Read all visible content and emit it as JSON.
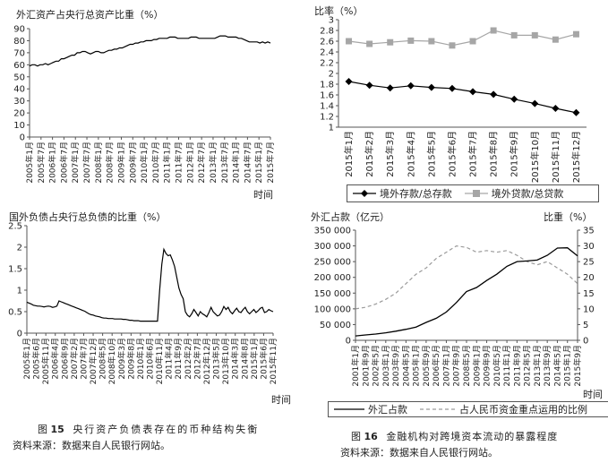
{
  "figure15": {
    "caption_prefix": "图",
    "caption_num": "15",
    "caption_text": "央行资产负债表存在的币种结构失衡",
    "source": "资料来源：数据来自人民银行网站。"
  },
  "figure16": {
    "caption_prefix": "图",
    "caption_num": "16",
    "caption_text": "金融机构对跨境资本流动的暴露程度",
    "source": "资料来源：数据来自人民银行网站。"
  },
  "colors": {
    "line": "#000000",
    "grey": "#a6a6a6",
    "dashed": "#9a9a9a",
    "axis": "#555555"
  },
  "chart_data": [
    {
      "id": "fx-assets-share",
      "type": "line",
      "ylabel": "外汇资产占央行总资产比重（%）",
      "xlabel": "时间",
      "ylim": [
        0,
        90
      ],
      "yticks": [
        0,
        10,
        20,
        30,
        40,
        50,
        60,
        70,
        80,
        90
      ],
      "x_tick_labels": [
        "2005年1月",
        "2005年7月",
        "2006年1月",
        "2006年7月",
        "2007年1月",
        "2007年7月",
        "2008年1月",
        "2008年7月",
        "2009年1月",
        "2009年7月",
        "2010年1月",
        "2010年7月",
        "2011年1月",
        "2011年7月",
        "2012年1月",
        "2012年7月",
        "2013年1月",
        "2013年7月",
        "2014年1月",
        "2014年7月",
        "2015年1月",
        "2015年7月"
      ],
      "series": [
        {
          "values": [
            59,
            60,
            60,
            59,
            60,
            60,
            61,
            60,
            61,
            62,
            63,
            63,
            65,
            65,
            66,
            67,
            68,
            68,
            70,
            70,
            71,
            71,
            70,
            69,
            70,
            71,
            71,
            70,
            70,
            71,
            72,
            72,
            73,
            73,
            74,
            74,
            75,
            76,
            77,
            77,
            78,
            78,
            79,
            79,
            80,
            80,
            80,
            81,
            81,
            82,
            82,
            82,
            82,
            83,
            83,
            83,
            82,
            82,
            82,
            82,
            82,
            83,
            83,
            83,
            82,
            82,
            82,
            82,
            82,
            82,
            82,
            83,
            84,
            84,
            84,
            83,
            83,
            83,
            83,
            82,
            82,
            81,
            80,
            79,
            79,
            79,
            79,
            78,
            79,
            78,
            79,
            78
          ]
        }
      ],
      "grid": false
    },
    {
      "id": "foreign-liabilities-share",
      "type": "line",
      "ylabel": "国外负债占央行总负债的比重（%）",
      "xlabel": "时间",
      "ylim": [
        0,
        2.5
      ],
      "yticks": [
        0,
        0.5,
        1,
        1.5,
        2,
        2.5
      ],
      "x_tick_labels": [
        "2005年1月",
        "2005年6月",
        "2005年11月",
        "2006年4月",
        "2006年9月",
        "2007年2月",
        "2007年7月",
        "2007年12月",
        "2008年5月",
        "2008年10月",
        "2009年3月",
        "2009年8月",
        "2010年1月",
        "2010年6月",
        "2010年11月",
        "2011年4月",
        "2011年9月",
        "2012年2月",
        "2012年7月",
        "2012年12月",
        "2013年5月",
        "2013年10月",
        "2014年3月",
        "2014年8月",
        "2015年1月",
        "2015年6月",
        "2015年11月"
      ],
      "series": [
        {
          "values": [
            0.72,
            0.7,
            0.68,
            0.65,
            0.64,
            0.63,
            0.63,
            0.62,
            0.61,
            0.62,
            0.63,
            0.62,
            0.6,
            0.61,
            0.63,
            0.75,
            0.73,
            0.71,
            0.69,
            0.67,
            0.65,
            0.63,
            0.61,
            0.59,
            0.57,
            0.55,
            0.53,
            0.51,
            0.48,
            0.45,
            0.43,
            0.42,
            0.4,
            0.39,
            0.38,
            0.36,
            0.35,
            0.35,
            0.34,
            0.34,
            0.34,
            0.33,
            0.33,
            0.33,
            0.33,
            0.32,
            0.32,
            0.31,
            0.3,
            0.3,
            0.29,
            0.29,
            0.29,
            0.28,
            0.28,
            0.28,
            0.28,
            0.28,
            0.28,
            0.28,
            0.28,
            0.28,
            1.0,
            1.6,
            1.95,
            1.85,
            1.8,
            1.82,
            1.7,
            1.55,
            1.3,
            1.05,
            0.9,
            0.8,
            0.5,
            0.42,
            0.38,
            0.45,
            0.55,
            0.48,
            0.4,
            0.5,
            0.45,
            0.42,
            0.38,
            0.48,
            0.6,
            0.5,
            0.45,
            0.4,
            0.42,
            0.5,
            0.62,
            0.55,
            0.6,
            0.5,
            0.45,
            0.52,
            0.58,
            0.5,
            0.48,
            0.55,
            0.6,
            0.5,
            0.45,
            0.5,
            0.55,
            0.48,
            0.52,
            0.58,
            0.6,
            0.48,
            0.5,
            0.55,
            0.52,
            0.5
          ]
        }
      ],
      "grid": false
    },
    {
      "id": "overseas-ratio-2015",
      "type": "line",
      "ylabel": "比率（%）",
      "ylim": [
        1,
        3
      ],
      "yticks": [
        1,
        1.2,
        1.4,
        1.6,
        1.8,
        2,
        2.2,
        2.4,
        2.6,
        2.8,
        3
      ],
      "categories": [
        "2015年1月",
        "2015年2月",
        "2015年3月",
        "2015年4月",
        "2015年5月",
        "2015年6月",
        "2015年7月",
        "2015年8月",
        "2015年9月",
        "2015年10月",
        "2015年11月",
        "2015年12月"
      ],
      "series": [
        {
          "name": "境外存款/总存款",
          "marker": "diamond",
          "values": [
            1.85,
            1.78,
            1.73,
            1.77,
            1.74,
            1.72,
            1.66,
            1.61,
            1.52,
            1.44,
            1.35,
            1.27
          ]
        },
        {
          "name": "境外贷款/总贷款",
          "marker": "square",
          "values": [
            2.6,
            2.55,
            2.58,
            2.61,
            2.6,
            2.52,
            2.6,
            2.8,
            2.71,
            2.71,
            2.63,
            2.73
          ]
        }
      ],
      "legend": "bottom",
      "grid": false
    },
    {
      "id": "fx-deposits",
      "type": "line",
      "ylabel_left": "外汇占款（亿元）",
      "ylabel_right": "比重（%）",
      "xlabel": "时间",
      "ylim_left": [
        0,
        350000
      ],
      "yticks_left": [
        "0",
        "50 000",
        "100 000",
        "150 000",
        "200 000",
        "250 000",
        "300 000",
        "350 000"
      ],
      "ylim_right": [
        0,
        35
      ],
      "yticks_right": [
        0,
        5,
        10,
        15,
        20,
        25,
        30,
        35
      ],
      "x_tick_labels": [
        "2001年1月",
        "2001年9月",
        "2002年5月",
        "2003年1月",
        "2003年9月",
        "2004年5月",
        "2005年1月",
        "2005年9月",
        "2006年5月",
        "2007年1月",
        "2007年9月",
        "2008年5月",
        "2009年1月",
        "2009年9月",
        "2010年5月",
        "2011年1月",
        "2011年9月",
        "2012年5月",
        "2013年1月",
        "2013年9月",
        "2014年5月",
        "2015年1月",
        "2015年9月"
      ],
      "series": [
        {
          "name": "外汇占款",
          "axis": "left",
          "style": "solid",
          "values": [
            14000,
            17000,
            20000,
            24000,
            29000,
            35000,
            42000,
            57000,
            70000,
            90000,
            120000,
            155000,
            168000,
            190000,
            210000,
            235000,
            250000,
            252000,
            255000,
            270000,
            293000,
            294000,
            268000
          ]
        },
        {
          "name": "占人民币资金重点运用的比例",
          "axis": "right",
          "style": "dashed",
          "values": [
            10,
            10.5,
            11.5,
            13,
            15,
            18,
            21,
            23,
            26,
            28,
            30,
            29.5,
            28,
            28.5,
            28,
            28.5,
            27,
            25,
            24,
            25,
            23,
            21,
            18
          ]
        }
      ],
      "legend": "bottom",
      "grid": false
    }
  ]
}
